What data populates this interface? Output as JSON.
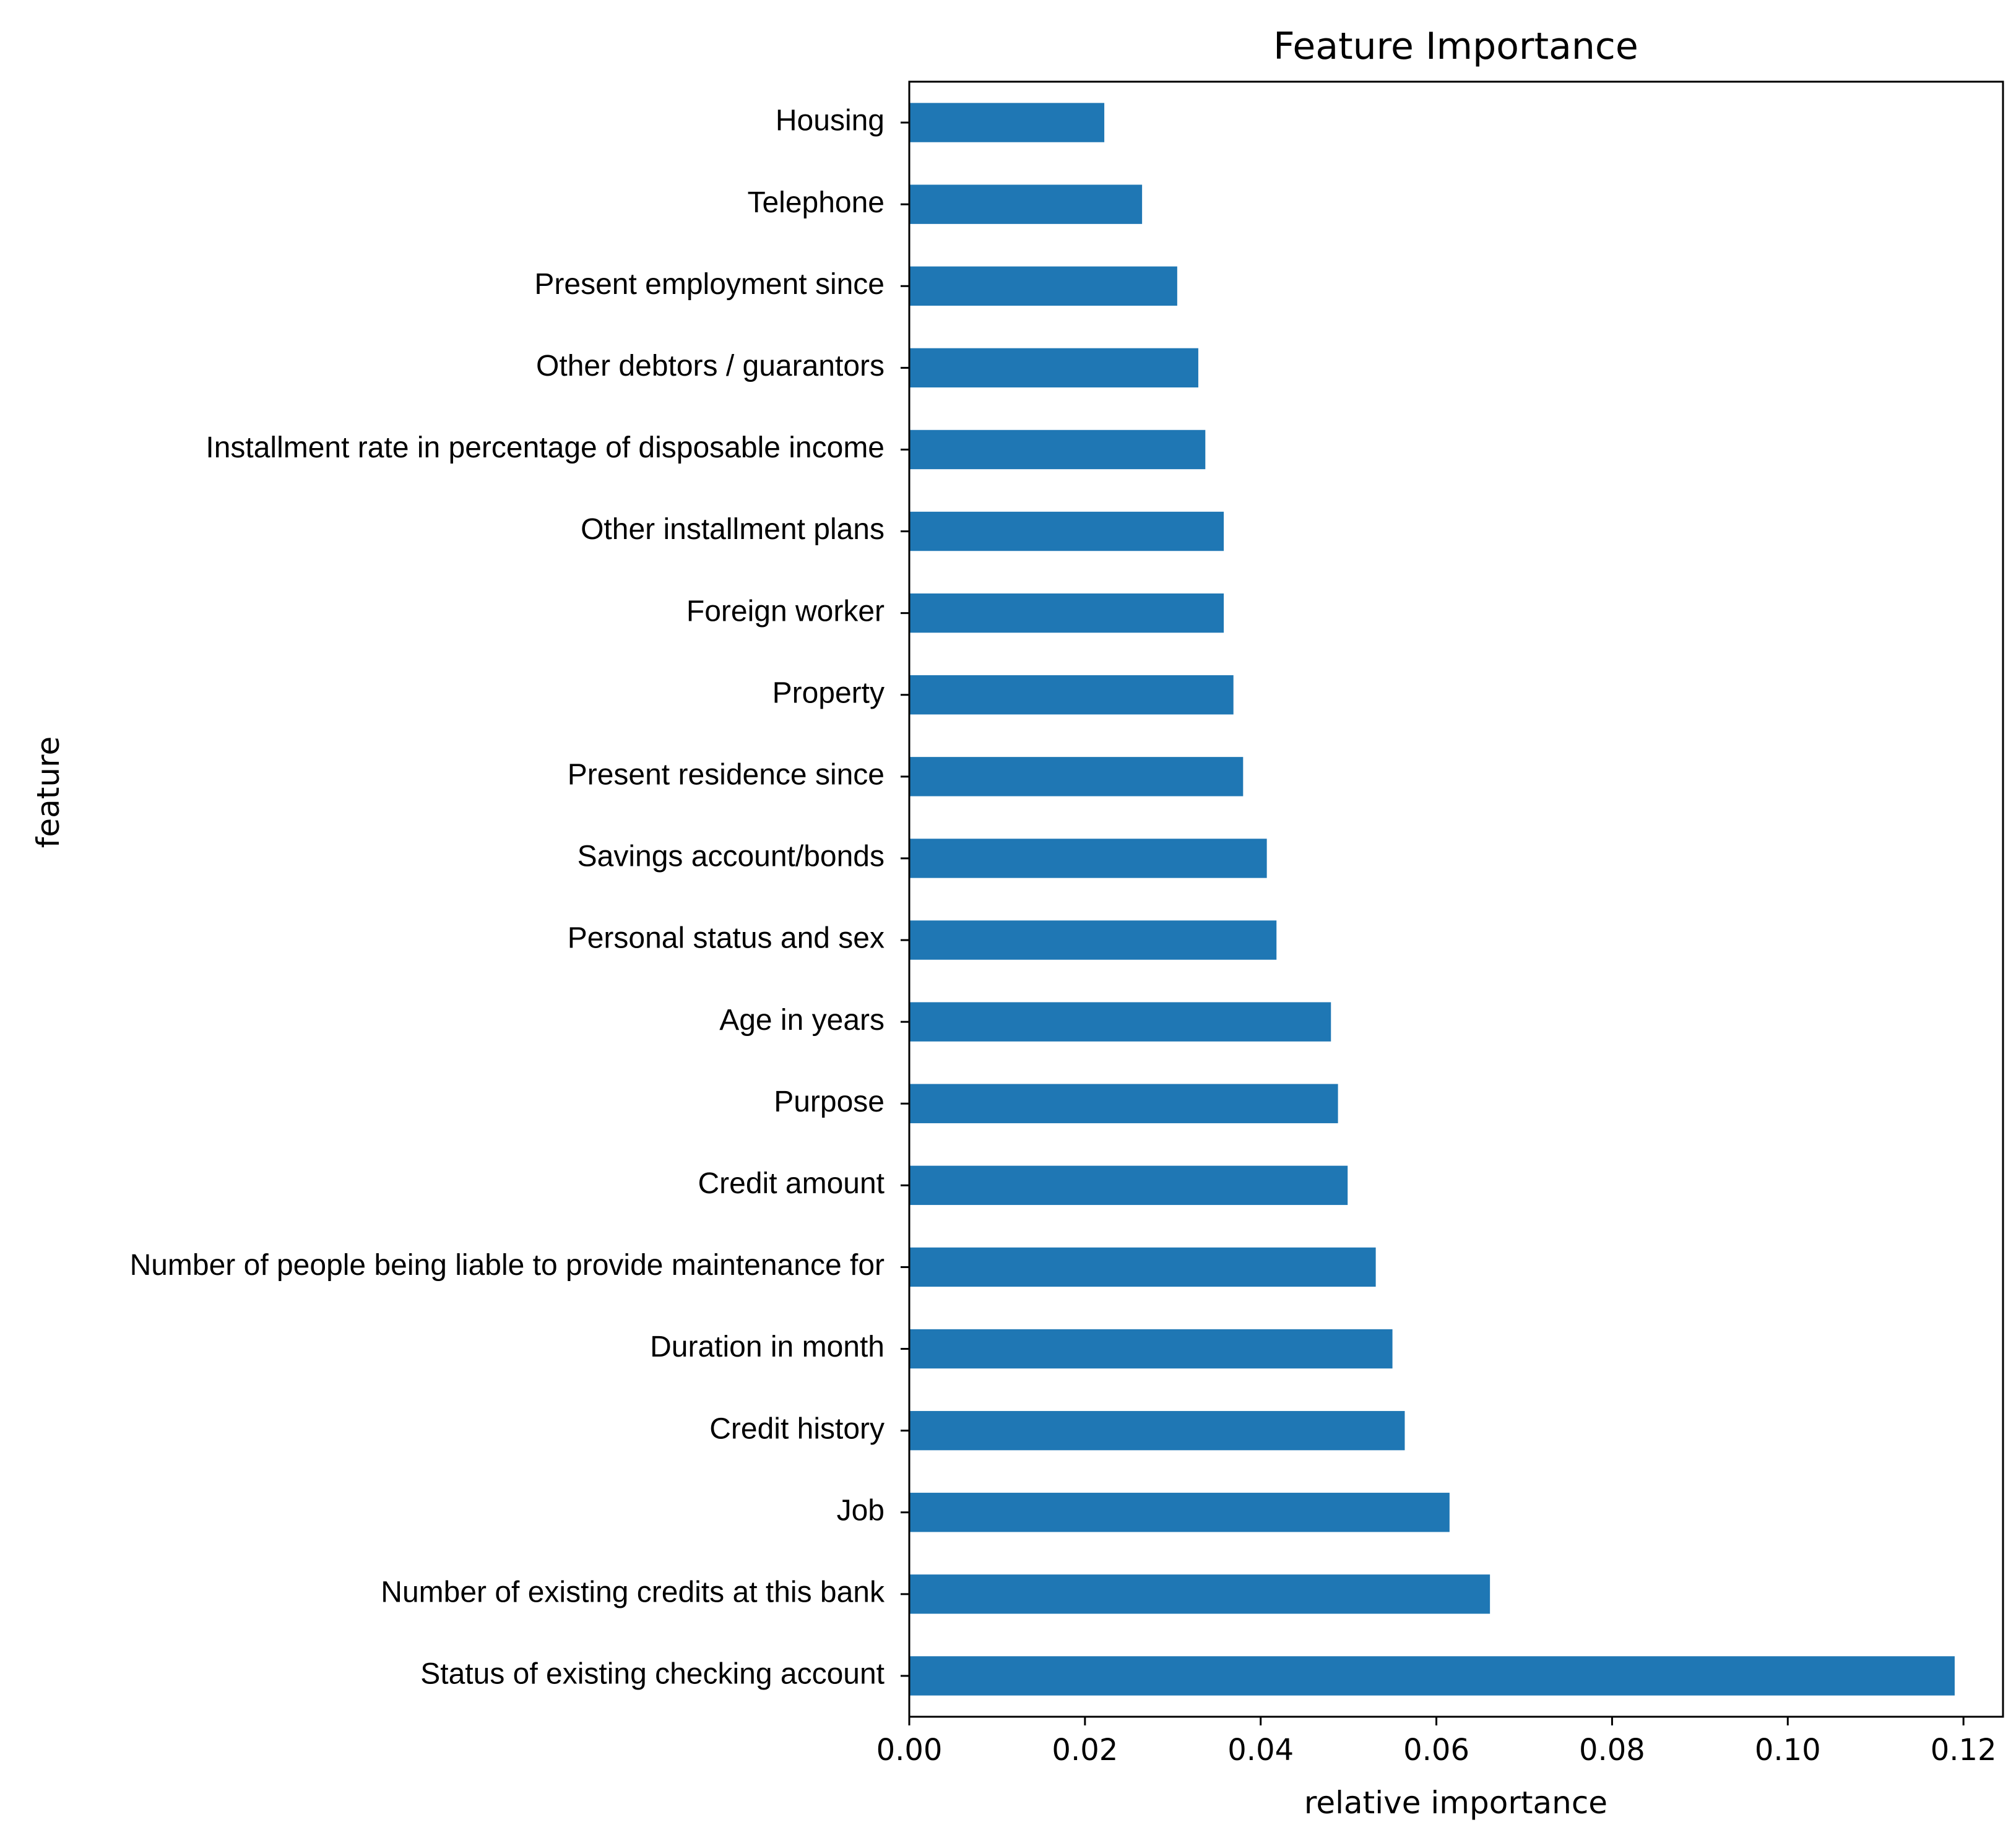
{
  "chart_data": {
    "type": "bar",
    "orientation": "horizontal",
    "title": "Feature Importance",
    "xlabel": "relative importance",
    "ylabel": "feature",
    "xlim": [
      0.0,
      0.1245
    ],
    "xticks": [
      "0.00",
      "0.02",
      "0.04",
      "0.06",
      "0.08",
      "0.10",
      "0.12"
    ],
    "xtick_values": [
      0.0,
      0.02,
      0.04,
      0.06,
      0.08,
      0.1,
      0.12
    ],
    "bar_color": "#1f77b4",
    "grid": false,
    "categories": [
      "Housing",
      "Telephone",
      "Present employment since",
      "Other debtors / guarantors",
      "Installment rate in percentage of disposable income",
      "Other installment plans",
      "Foreign worker",
      "Property",
      "Present residence since",
      "Savings account/bonds",
      "Personal status and sex",
      "Age in years",
      "Purpose",
      "Credit amount",
      "Number of people being liable to provide maintenance for",
      "Duration in month",
      "Credit history",
      "Job",
      "Number of existing credits at this bank",
      "Status of existing checking account"
    ],
    "values": [
      0.0222,
      0.0265,
      0.0305,
      0.0329,
      0.0337,
      0.0358,
      0.0358,
      0.0369,
      0.038,
      0.0407,
      0.0418,
      0.048,
      0.0488,
      0.0499,
      0.0531,
      0.055,
      0.0564,
      0.0615,
      0.0661,
      0.119
    ]
  }
}
